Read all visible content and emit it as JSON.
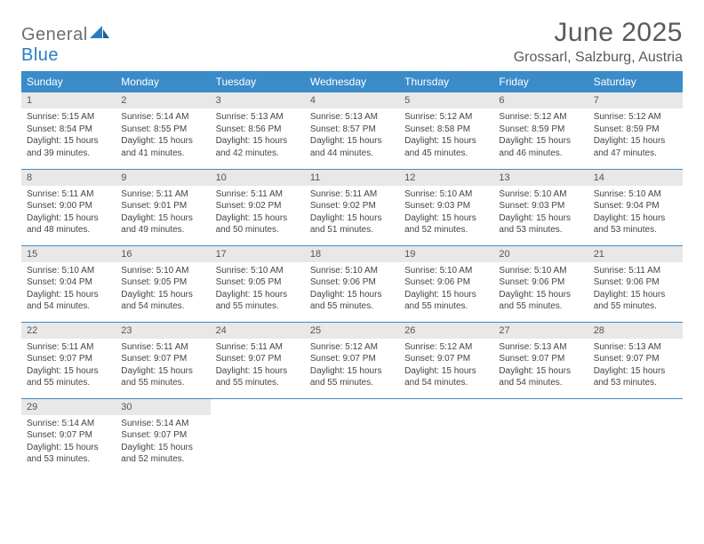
{
  "brand": {
    "part1": "General",
    "part2": "Blue"
  },
  "title": "June 2025",
  "location": "Grossarl, Salzburg, Austria",
  "colors": {
    "header_bg": "#3b8bc9",
    "header_text": "#ffffff",
    "daynum_bg": "#e8e8e8",
    "rule": "#3b8bc9",
    "brand_gray": "#6e6e6e",
    "brand_blue": "#2a7dc0"
  },
  "weekdays": [
    "Sunday",
    "Monday",
    "Tuesday",
    "Wednesday",
    "Thursday",
    "Friday",
    "Saturday"
  ],
  "cells": [
    {
      "n": "1",
      "sr": "Sunrise: 5:15 AM",
      "ss": "Sunset: 8:54 PM",
      "d1": "Daylight: 15 hours",
      "d2": "and 39 minutes."
    },
    {
      "n": "2",
      "sr": "Sunrise: 5:14 AM",
      "ss": "Sunset: 8:55 PM",
      "d1": "Daylight: 15 hours",
      "d2": "and 41 minutes."
    },
    {
      "n": "3",
      "sr": "Sunrise: 5:13 AM",
      "ss": "Sunset: 8:56 PM",
      "d1": "Daylight: 15 hours",
      "d2": "and 42 minutes."
    },
    {
      "n": "4",
      "sr": "Sunrise: 5:13 AM",
      "ss": "Sunset: 8:57 PM",
      "d1": "Daylight: 15 hours",
      "d2": "and 44 minutes."
    },
    {
      "n": "5",
      "sr": "Sunrise: 5:12 AM",
      "ss": "Sunset: 8:58 PM",
      "d1": "Daylight: 15 hours",
      "d2": "and 45 minutes."
    },
    {
      "n": "6",
      "sr": "Sunrise: 5:12 AM",
      "ss": "Sunset: 8:59 PM",
      "d1": "Daylight: 15 hours",
      "d2": "and 46 minutes."
    },
    {
      "n": "7",
      "sr": "Sunrise: 5:12 AM",
      "ss": "Sunset: 8:59 PM",
      "d1": "Daylight: 15 hours",
      "d2": "and 47 minutes."
    },
    {
      "n": "8",
      "sr": "Sunrise: 5:11 AM",
      "ss": "Sunset: 9:00 PM",
      "d1": "Daylight: 15 hours",
      "d2": "and 48 minutes."
    },
    {
      "n": "9",
      "sr": "Sunrise: 5:11 AM",
      "ss": "Sunset: 9:01 PM",
      "d1": "Daylight: 15 hours",
      "d2": "and 49 minutes."
    },
    {
      "n": "10",
      "sr": "Sunrise: 5:11 AM",
      "ss": "Sunset: 9:02 PM",
      "d1": "Daylight: 15 hours",
      "d2": "and 50 minutes."
    },
    {
      "n": "11",
      "sr": "Sunrise: 5:11 AM",
      "ss": "Sunset: 9:02 PM",
      "d1": "Daylight: 15 hours",
      "d2": "and 51 minutes."
    },
    {
      "n": "12",
      "sr": "Sunrise: 5:10 AM",
      "ss": "Sunset: 9:03 PM",
      "d1": "Daylight: 15 hours",
      "d2": "and 52 minutes."
    },
    {
      "n": "13",
      "sr": "Sunrise: 5:10 AM",
      "ss": "Sunset: 9:03 PM",
      "d1": "Daylight: 15 hours",
      "d2": "and 53 minutes."
    },
    {
      "n": "14",
      "sr": "Sunrise: 5:10 AM",
      "ss": "Sunset: 9:04 PM",
      "d1": "Daylight: 15 hours",
      "d2": "and 53 minutes."
    },
    {
      "n": "15",
      "sr": "Sunrise: 5:10 AM",
      "ss": "Sunset: 9:04 PM",
      "d1": "Daylight: 15 hours",
      "d2": "and 54 minutes."
    },
    {
      "n": "16",
      "sr": "Sunrise: 5:10 AM",
      "ss": "Sunset: 9:05 PM",
      "d1": "Daylight: 15 hours",
      "d2": "and 54 minutes."
    },
    {
      "n": "17",
      "sr": "Sunrise: 5:10 AM",
      "ss": "Sunset: 9:05 PM",
      "d1": "Daylight: 15 hours",
      "d2": "and 55 minutes."
    },
    {
      "n": "18",
      "sr": "Sunrise: 5:10 AM",
      "ss": "Sunset: 9:06 PM",
      "d1": "Daylight: 15 hours",
      "d2": "and 55 minutes."
    },
    {
      "n": "19",
      "sr": "Sunrise: 5:10 AM",
      "ss": "Sunset: 9:06 PM",
      "d1": "Daylight: 15 hours",
      "d2": "and 55 minutes."
    },
    {
      "n": "20",
      "sr": "Sunrise: 5:10 AM",
      "ss": "Sunset: 9:06 PM",
      "d1": "Daylight: 15 hours",
      "d2": "and 55 minutes."
    },
    {
      "n": "21",
      "sr": "Sunrise: 5:11 AM",
      "ss": "Sunset: 9:06 PM",
      "d1": "Daylight: 15 hours",
      "d2": "and 55 minutes."
    },
    {
      "n": "22",
      "sr": "Sunrise: 5:11 AM",
      "ss": "Sunset: 9:07 PM",
      "d1": "Daylight: 15 hours",
      "d2": "and 55 minutes."
    },
    {
      "n": "23",
      "sr": "Sunrise: 5:11 AM",
      "ss": "Sunset: 9:07 PM",
      "d1": "Daylight: 15 hours",
      "d2": "and 55 minutes."
    },
    {
      "n": "24",
      "sr": "Sunrise: 5:11 AM",
      "ss": "Sunset: 9:07 PM",
      "d1": "Daylight: 15 hours",
      "d2": "and 55 minutes."
    },
    {
      "n": "25",
      "sr": "Sunrise: 5:12 AM",
      "ss": "Sunset: 9:07 PM",
      "d1": "Daylight: 15 hours",
      "d2": "and 55 minutes."
    },
    {
      "n": "26",
      "sr": "Sunrise: 5:12 AM",
      "ss": "Sunset: 9:07 PM",
      "d1": "Daylight: 15 hours",
      "d2": "and 54 minutes."
    },
    {
      "n": "27",
      "sr": "Sunrise: 5:13 AM",
      "ss": "Sunset: 9:07 PM",
      "d1": "Daylight: 15 hours",
      "d2": "and 54 minutes."
    },
    {
      "n": "28",
      "sr": "Sunrise: 5:13 AM",
      "ss": "Sunset: 9:07 PM",
      "d1": "Daylight: 15 hours",
      "d2": "and 53 minutes."
    },
    {
      "n": "29",
      "sr": "Sunrise: 5:14 AM",
      "ss": "Sunset: 9:07 PM",
      "d1": "Daylight: 15 hours",
      "d2": "and 53 minutes."
    },
    {
      "n": "30",
      "sr": "Sunrise: 5:14 AM",
      "ss": "Sunset: 9:07 PM",
      "d1": "Daylight: 15 hours",
      "d2": "and 52 minutes."
    },
    {
      "empty": true
    },
    {
      "empty": true
    },
    {
      "empty": true
    },
    {
      "empty": true
    },
    {
      "empty": true
    }
  ]
}
